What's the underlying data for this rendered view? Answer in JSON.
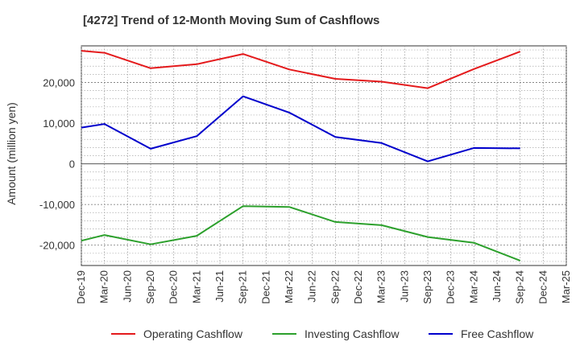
{
  "chart_data": {
    "type": "line",
    "title": "[4272]  Trend of 12-Month Moving Sum of Cashflows",
    "xlabel": "",
    "ylabel": "Amount (million yen)",
    "categories": [
      "Dec-19",
      "Mar-20",
      "Jun-20",
      "Sep-20",
      "Dec-20",
      "Mar-21",
      "Jun-21",
      "Sep-21",
      "Dec-21",
      "Mar-22",
      "Jun-22",
      "Sep-22",
      "Dec-22",
      "Mar-23",
      "Jun-23",
      "Sep-23",
      "Dec-23",
      "Mar-24",
      "Jun-24",
      "Sep-24",
      "Dec-24",
      "Mar-25"
    ],
    "y_ticks": [
      -20000,
      -10000,
      0,
      10000,
      20000
    ],
    "y_tick_labels": [
      "-20,000",
      "-10,000",
      "0",
      "10,000",
      "20,000"
    ],
    "ylim": [
      -25000,
      29000
    ],
    "grid": true,
    "legend_position": "bottom",
    "series": [
      {
        "name": "Operating Cashflow",
        "color": "#e41a1c",
        "values": [
          27800,
          27300,
          null,
          23500,
          null,
          24500,
          null,
          27000,
          null,
          23200,
          null,
          20900,
          null,
          20200,
          null,
          18600,
          null,
          23300,
          null,
          27600,
          null,
          null
        ]
      },
      {
        "name": "Investing Cashflow",
        "color": "#2ca02c",
        "values": [
          -18900,
          -17500,
          null,
          -19800,
          null,
          -17700,
          null,
          -10400,
          null,
          -10600,
          null,
          -14300,
          null,
          -15100,
          null,
          -18000,
          null,
          -19400,
          null,
          -23800,
          null,
          null
        ]
      },
      {
        "name": "Free Cashflow",
        "color": "#0000cc",
        "values": [
          8900,
          9800,
          null,
          3700,
          null,
          6800,
          null,
          16600,
          null,
          12600,
          null,
          6600,
          null,
          5100,
          null,
          600,
          null,
          3900,
          null,
          3800,
          null,
          null
        ]
      }
    ]
  }
}
